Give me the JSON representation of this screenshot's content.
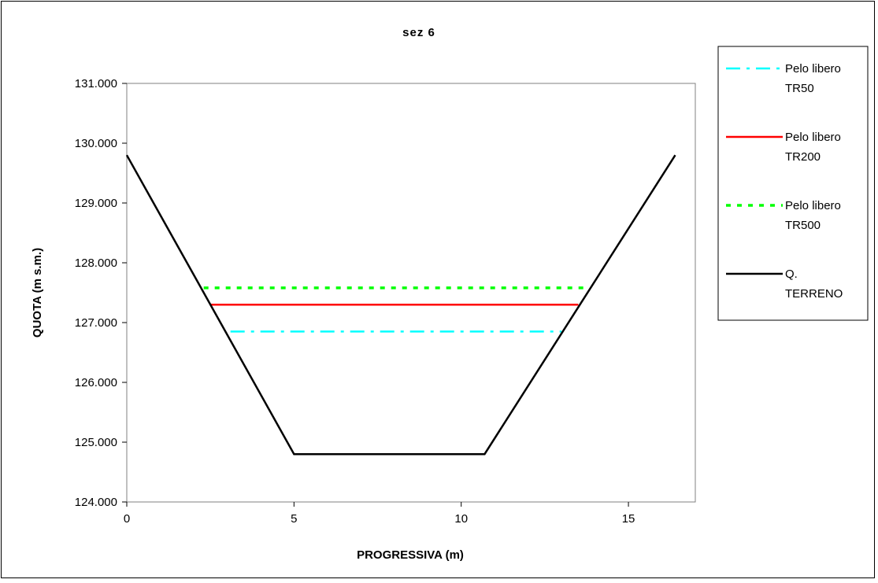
{
  "chart_data": {
    "type": "line",
    "title": "sez 6",
    "xlabel": "PROGRESSIVA (m)",
    "ylabel": "QUOTA (m s.m.)",
    "xlim": [
      0,
      17
    ],
    "ylim": [
      124.0,
      131.0
    ],
    "x_ticks": [
      0,
      5,
      10,
      15
    ],
    "x_tick_labels": [
      "0",
      "5",
      "10",
      "15"
    ],
    "y_ticks": [
      124,
      125,
      126,
      127,
      128,
      129,
      130,
      131
    ],
    "y_tick_labels": [
      "124.000",
      "125.000",
      "126.000",
      "127.000",
      "128.000",
      "129.000",
      "130.000",
      "131.000"
    ],
    "grid": false,
    "legend_position": "right",
    "series": [
      {
        "name": "Pelo libero TR50",
        "legend_lines": [
          "Pelo libero",
          "TR50"
        ],
        "color": "#00ffff",
        "style": "dashdot",
        "x": [
          3.1,
          13.0
        ],
        "y": [
          126.85,
          126.85
        ]
      },
      {
        "name": "Pelo libero TR200",
        "legend_lines": [
          "Pelo libero",
          "TR200"
        ],
        "color": "#ff0000",
        "style": "solid",
        "x": [
          2.5,
          13.5
        ],
        "y": [
          127.3,
          127.3
        ]
      },
      {
        "name": "Pelo libero TR500",
        "legend_lines": [
          "Pelo libero",
          "TR500"
        ],
        "color": "#00ff00",
        "style": "dotted",
        "x": [
          2.3,
          13.7
        ],
        "y": [
          127.58,
          127.58
        ]
      },
      {
        "name": "Q. TERRENO",
        "legend_lines": [
          "Q.",
          "TERRENO"
        ],
        "color": "#000000",
        "style": "solid",
        "x": [
          0,
          5.0,
          10.7,
          16.4
        ],
        "y": [
          129.8,
          124.8,
          124.8,
          129.8
        ]
      }
    ]
  }
}
